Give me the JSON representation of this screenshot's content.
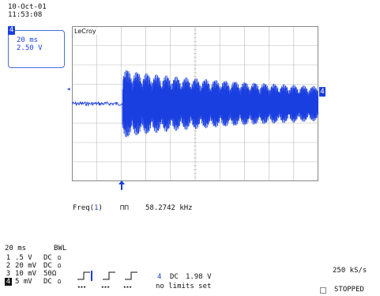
{
  "header": {
    "date": "10-Oct-01",
    "time": "11:53:08"
  },
  "trace_box": {
    "channel": "4",
    "timebase": "20 ms",
    "volts_per_div": "2.50 V"
  },
  "brand": "LeCroy",
  "markers": {
    "left_level": "◂",
    "right_level": "4"
  },
  "measurement": {
    "label": "Freq(",
    "index": "1",
    "close": ")",
    "symbol": "⊓⊓",
    "value": "58.2742 kHz"
  },
  "status": {
    "timebase": "20 ms",
    "bwl": "BWL",
    "sample_rate": "250 kS/s",
    "state": "STOPPED"
  },
  "channels": [
    {
      "num": "1",
      "scale": ".5  V",
      "coupling": "DC",
      "mark": "Ω"
    },
    {
      "num": "2",
      "scale": "20 mV",
      "coupling": "DC",
      "mark": "Ω"
    },
    {
      "num": "3",
      "scale": "10 mV",
      "coupling": "50Ω",
      "mark": ""
    },
    {
      "num": "4",
      "scale": " 5 mV",
      "coupling": "DC",
      "mark": "Ω"
    }
  ],
  "trigger": {
    "channel": "4",
    "coupling": "DC",
    "level": "1.98 V",
    "note": "no limits set"
  },
  "colors": {
    "trace": "#1a3fe0",
    "grid": "#b9b9b9",
    "frame": "#888888"
  },
  "chart_data": {
    "type": "line",
    "xlim": [
      0,
      10
    ],
    "ylim": [
      -4,
      4
    ],
    "grid": true,
    "series": [
      {
        "x": [
          0,
          2,
          2.05,
          10
        ],
        "y": [
          0.1,
          0.1,
          0,
          0
        ]
      }
    ],
    "envelope_note_free": true,
    "burst": {
      "start_div": 2.05,
      "cycles": 20,
      "peak_div": 1.9,
      "end_peak_div": 0.9,
      "baseline_div": 0.1
    }
  }
}
